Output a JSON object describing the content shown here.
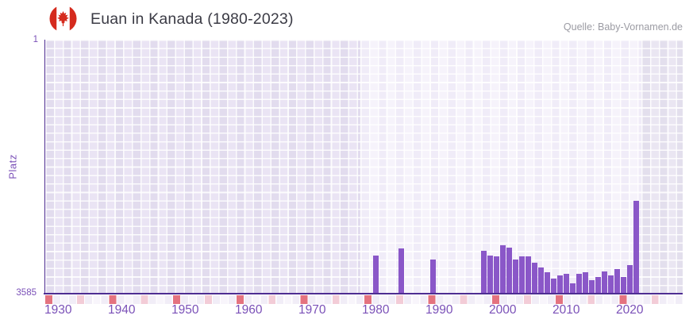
{
  "header": {
    "title": "Euan in Kanada (1980-2023)",
    "source": "Quelle: Baby-Vornamen.de",
    "flag": "canada-flag-icon"
  },
  "chart_data": {
    "type": "bar",
    "title": "Euan in Kanada (1980-2023)",
    "xlabel": "",
    "ylabel": "Platz",
    "y_axis": {
      "top_label": "1",
      "bottom_label": "3585",
      "range": [
        1,
        3585
      ],
      "inverted": true
    },
    "x_ticks": [
      1930,
      1940,
      1950,
      1960,
      1970,
      1980,
      1990,
      2000,
      2010,
      2020
    ],
    "x_range": [
      1928,
      2028
    ],
    "grid": true,
    "legend": false,
    "highlight_band": {
      "from_year": 1978,
      "to_year": 2022
    },
    "series": [
      {
        "name": "Platz",
        "points": [
          {
            "year": 1980,
            "rank": 3050
          },
          {
            "year": 1984,
            "rank": 2945
          },
          {
            "year": 1989,
            "rank": 3100
          },
          {
            "year": 1997,
            "rank": 2980
          },
          {
            "year": 1998,
            "rank": 3045
          },
          {
            "year": 1999,
            "rank": 3060
          },
          {
            "year": 2000,
            "rank": 2900
          },
          {
            "year": 2001,
            "rank": 2935
          },
          {
            "year": 2002,
            "rank": 3105
          },
          {
            "year": 2003,
            "rank": 3060
          },
          {
            "year": 2004,
            "rank": 3055
          },
          {
            "year": 2005,
            "rank": 3150
          },
          {
            "year": 2006,
            "rank": 3215
          },
          {
            "year": 2007,
            "rank": 3280
          },
          {
            "year": 2008,
            "rank": 3370
          },
          {
            "year": 2009,
            "rank": 3325
          },
          {
            "year": 2010,
            "rank": 3305
          },
          {
            "year": 2011,
            "rank": 3440
          },
          {
            "year": 2012,
            "rank": 3305
          },
          {
            "year": 2013,
            "rank": 3280
          },
          {
            "year": 2014,
            "rank": 3395
          },
          {
            "year": 2015,
            "rank": 3350
          },
          {
            "year": 2016,
            "rank": 3270
          },
          {
            "year": 2017,
            "rank": 3325
          },
          {
            "year": 2018,
            "rank": 3240
          },
          {
            "year": 2019,
            "rank": 3350
          },
          {
            "year": 2020,
            "rank": 3180
          },
          {
            "year": 2021,
            "rank": 2275
          }
        ]
      }
    ]
  },
  "colors": {
    "bar": "#8a57c8",
    "axis": "#4e2d92",
    "ticks": "#7b51b8",
    "title": "#3b3b45",
    "source": "#9b9ba3",
    "red": "#e4737f",
    "pink": "#f3ccd7",
    "flag_red": "#d52b1e"
  }
}
